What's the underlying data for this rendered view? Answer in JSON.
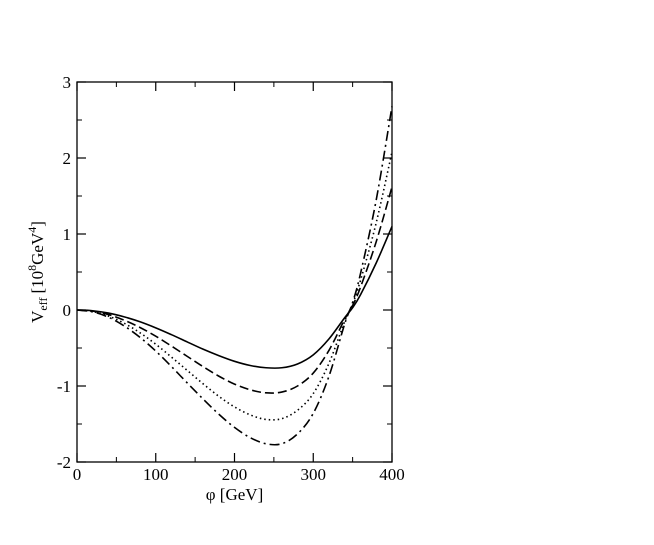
{
  "chart_data": {
    "type": "line",
    "xlabel": "φ [GeV]",
    "ylabel": {
      "main": "V",
      "sub": "eff",
      "unit_open": "[10",
      "unit_exp": "8",
      "unit_mid": "GeV",
      "unit_exp2": "4",
      "unit_close": "]"
    },
    "xlim": [
      0,
      400
    ],
    "ylim": [
      -2,
      3
    ],
    "x_ticks": [
      0,
      100,
      200,
      300,
      400
    ],
    "x_tick_labels": [
      "0",
      "100",
      "200",
      "300",
      "400"
    ],
    "y_ticks": [
      -2,
      -1,
      0,
      1,
      2,
      3
    ],
    "y_tick_labels": [
      "-2",
      "-1",
      "0",
      "1",
      "2",
      "3"
    ],
    "grid": false,
    "legend": "none",
    "x": [
      0,
      20,
      40,
      60,
      80,
      100,
      120,
      140,
      160,
      180,
      200,
      220,
      240,
      260,
      280,
      300,
      320,
      340,
      350,
      360,
      380,
      400
    ],
    "series": [
      {
        "style": "solid",
        "values": [
          0,
          -0.01,
          -0.04,
          -0.09,
          -0.155,
          -0.235,
          -0.325,
          -0.42,
          -0.515,
          -0.6,
          -0.675,
          -0.73,
          -0.76,
          -0.76,
          -0.71,
          -0.59,
          -0.38,
          -0.1,
          0.03,
          0.2,
          0.62,
          1.1
        ]
      },
      {
        "style": "dashed",
        "values": [
          0,
          -0.015,
          -0.06,
          -0.135,
          -0.23,
          -0.345,
          -0.475,
          -0.61,
          -0.745,
          -0.87,
          -0.975,
          -1.05,
          -1.09,
          -1.08,
          -1.0,
          -0.83,
          -0.53,
          -0.12,
          0.06,
          0.3,
          0.9,
          1.62
        ]
      },
      {
        "style": "dotted",
        "values": [
          0,
          -0.02,
          -0.08,
          -0.175,
          -0.3,
          -0.45,
          -0.62,
          -0.795,
          -0.97,
          -1.135,
          -1.275,
          -1.38,
          -1.44,
          -1.43,
          -1.32,
          -1.1,
          -0.7,
          -0.15,
          0.08,
          0.39,
          1.15,
          2.08
        ]
      },
      {
        "style": "dash-dot",
        "values": [
          0,
          -0.025,
          -0.095,
          -0.21,
          -0.36,
          -0.54,
          -0.745,
          -0.96,
          -1.17,
          -1.37,
          -1.545,
          -1.68,
          -1.76,
          -1.76,
          -1.63,
          -1.36,
          -0.87,
          -0.18,
          0.1,
          0.48,
          1.45,
          2.68
        ]
      }
    ]
  }
}
